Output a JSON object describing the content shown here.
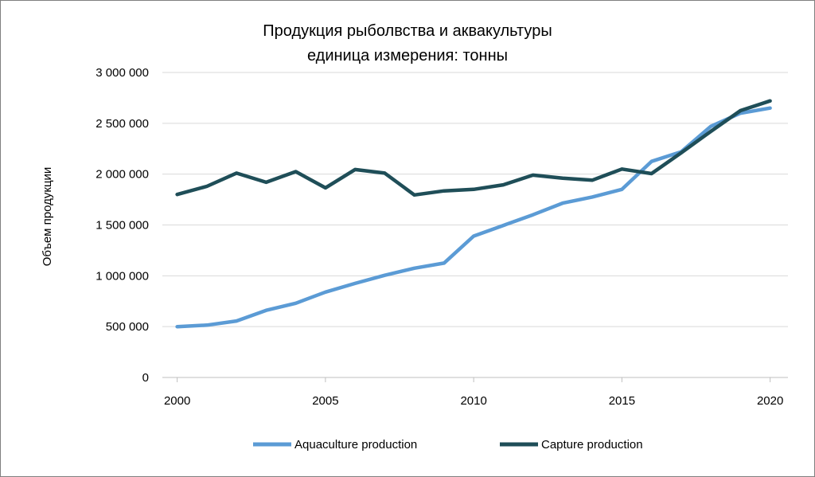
{
  "chart_data": {
    "type": "line",
    "title": "Продукция рыболвства и аквакультуры",
    "subtitle": "единица измерения: тонны",
    "xlabel": "",
    "ylabel": "Объем продукции",
    "xlim": [
      1999.5,
      2020.6
    ],
    "ylim": [
      0,
      3000000
    ],
    "yticks": [
      0,
      500000,
      1000000,
      1500000,
      2000000,
      2500000,
      3000000
    ],
    "yticklabels": [
      "0",
      "500 000",
      "1 000 000",
      "1 500 000",
      "2 000 000",
      "2 500 000",
      "3 000 000"
    ],
    "xticks": [
      2000,
      2005,
      2010,
      2015,
      2020
    ],
    "xticklabels": [
      "2000",
      "2005",
      "2010",
      "2015",
      "2020"
    ],
    "grid": "horizontal",
    "legend_position": "bottom",
    "x": [
      2000,
      2001,
      2002,
      2003,
      2004,
      2005,
      2006,
      2007,
      2008,
      2009,
      2010,
      2011,
      2012,
      2013,
      2014,
      2015,
      2016,
      2017,
      2018,
      2019,
      2020
    ],
    "series": [
      {
        "name": "Aquaculture production",
        "color": "#5b9bd5",
        "values": [
          500000,
          515000,
          555000,
          660000,
          730000,
          840000,
          925000,
          1005000,
          1075000,
          1125000,
          1390000,
          1495000,
          1600000,
          1715000,
          1775000,
          1850000,
          2125000,
          2220000,
          2470000,
          2600000,
          2650000
        ]
      },
      {
        "name": "Capture production",
        "color": "#1f4e58",
        "values": [
          1800000,
          1880000,
          2010000,
          1920000,
          2025000,
          1865000,
          2045000,
          2010000,
          1795000,
          1835000,
          1850000,
          1895000,
          1990000,
          1960000,
          1940000,
          2050000,
          2005000,
          2210000,
          2420000,
          2625000,
          2720000
        ]
      }
    ]
  }
}
